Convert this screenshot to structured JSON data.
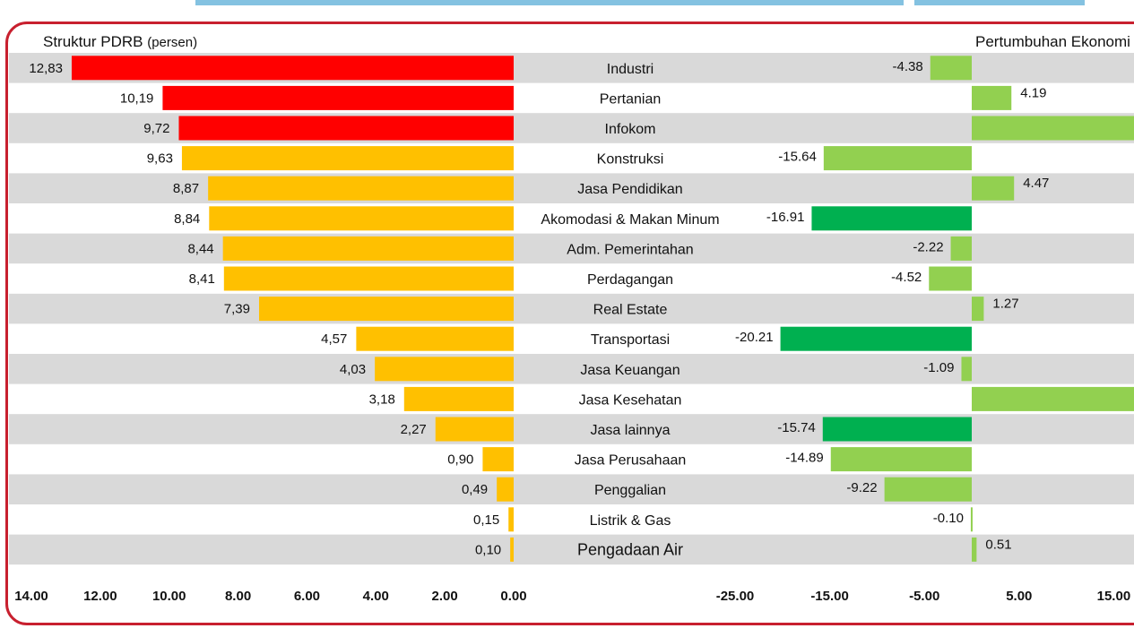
{
  "left_header": {
    "title": "Struktur PDRB",
    "unit": "(persen)"
  },
  "right_header": {
    "title": "Pertumbuhan Ekonomi"
  },
  "chart_data": [
    {
      "type": "bar",
      "orientation": "horizontal",
      "title": "Struktur PDRB (persen)",
      "categories": [
        "Industri",
        "Pertanian",
        "Infokom",
        "Konstruksi",
        "Jasa Pendidikan",
        "Akomodasi & Makan Minum",
        "Adm. Pemerintahan",
        "Perdagangan",
        "Real Estate",
        "Transportasi",
        "Jasa Keuangan",
        "Jasa Kesehatan",
        "Jasa lainnya",
        "Jasa Perusahaan",
        "Penggalian",
        "Listrik & Gas",
        "Pengadaan Air"
      ],
      "values": [
        12.83,
        10.19,
        9.72,
        9.63,
        8.87,
        8.84,
        8.44,
        8.41,
        7.39,
        4.57,
        4.03,
        3.18,
        2.27,
        0.9,
        0.49,
        0.15,
        0.1
      ],
      "value_labels": [
        "12,83",
        "10,19",
        "9,72",
        "9,63",
        "8,87",
        "8,84",
        "8,44",
        "8,41",
        "7,39",
        "4,57",
        "4,03",
        "3,18",
        "2,27",
        "0,90",
        "0,49",
        "0,15",
        "0,10"
      ],
      "bar_colors": [
        "#ff0000",
        "#ff0000",
        "#ff0000",
        "#ffc000",
        "#ffc000",
        "#ffc000",
        "#ffc000",
        "#ffc000",
        "#ffc000",
        "#ffc000",
        "#ffc000",
        "#ffc000",
        "#ffc000",
        "#ffc000",
        "#ffc000",
        "#ffc000",
        "#ffc000"
      ],
      "xlim": [
        14,
        0
      ],
      "xticks": [
        "14.00",
        "12.00",
        "10.00",
        "8.00",
        "6.00",
        "4.00",
        "2.00",
        "0.00"
      ],
      "xtick_values": [
        14,
        12,
        10,
        8,
        6,
        4,
        2,
        0
      ]
    },
    {
      "type": "bar",
      "orientation": "horizontal",
      "title": "Pertumbuhan Ekonomi",
      "categories": [
        "Industri",
        "Pertanian",
        "Infokom",
        "Konstruksi",
        "Jasa Pendidikan",
        "Akomodasi & Makan Minum",
        "Adm. Pemerintahan",
        "Perdagangan",
        "Real Estate",
        "Transportasi",
        "Jasa Keuangan",
        "Jasa Kesehatan",
        "Jasa lainnya",
        "Jasa Perusahaan",
        "Penggalian",
        "Listrik & Gas",
        "Pengadaan Air"
      ],
      "values": [
        -4.38,
        4.19,
        null,
        -15.64,
        4.47,
        -16.91,
        -2.22,
        -4.52,
        1.27,
        -20.21,
        -1.09,
        null,
        -15.74,
        -14.89,
        -9.22,
        -0.1,
        0.51
      ],
      "value_labels": [
        "-4.38",
        "4.19",
        "",
        "-15.64",
        "4.47",
        "-16.91",
        "-2.22",
        "-4.52",
        "1.27",
        "-20.21",
        "-1.09",
        "",
        "-15.74",
        "-14.89",
        "-9.22",
        "-0.10",
        "0.51"
      ],
      "overflow_rows": [
        2,
        11
      ],
      "bar_colors": [
        "#92d050",
        "#92d050",
        "#92d050",
        "#92d050",
        "#92d050",
        "#00b050",
        "#92d050",
        "#92d050",
        "#92d050",
        "#00b050",
        "#92d050",
        "#92d050",
        "#00b050",
        "#92d050",
        "#92d050",
        "#92d050",
        "#92d050"
      ],
      "xlim": [
        -25,
        15
      ],
      "xticks": [
        "-25.00",
        "-15.00",
        "-5.00",
        "5.00",
        "15.00"
      ],
      "xtick_values": [
        -25,
        -15,
        -5,
        5,
        15
      ]
    }
  ],
  "colors": {
    "row_band": "#d9d9d9",
    "frame": "#c8202f",
    "top_strip": "#1f8fc8"
  }
}
